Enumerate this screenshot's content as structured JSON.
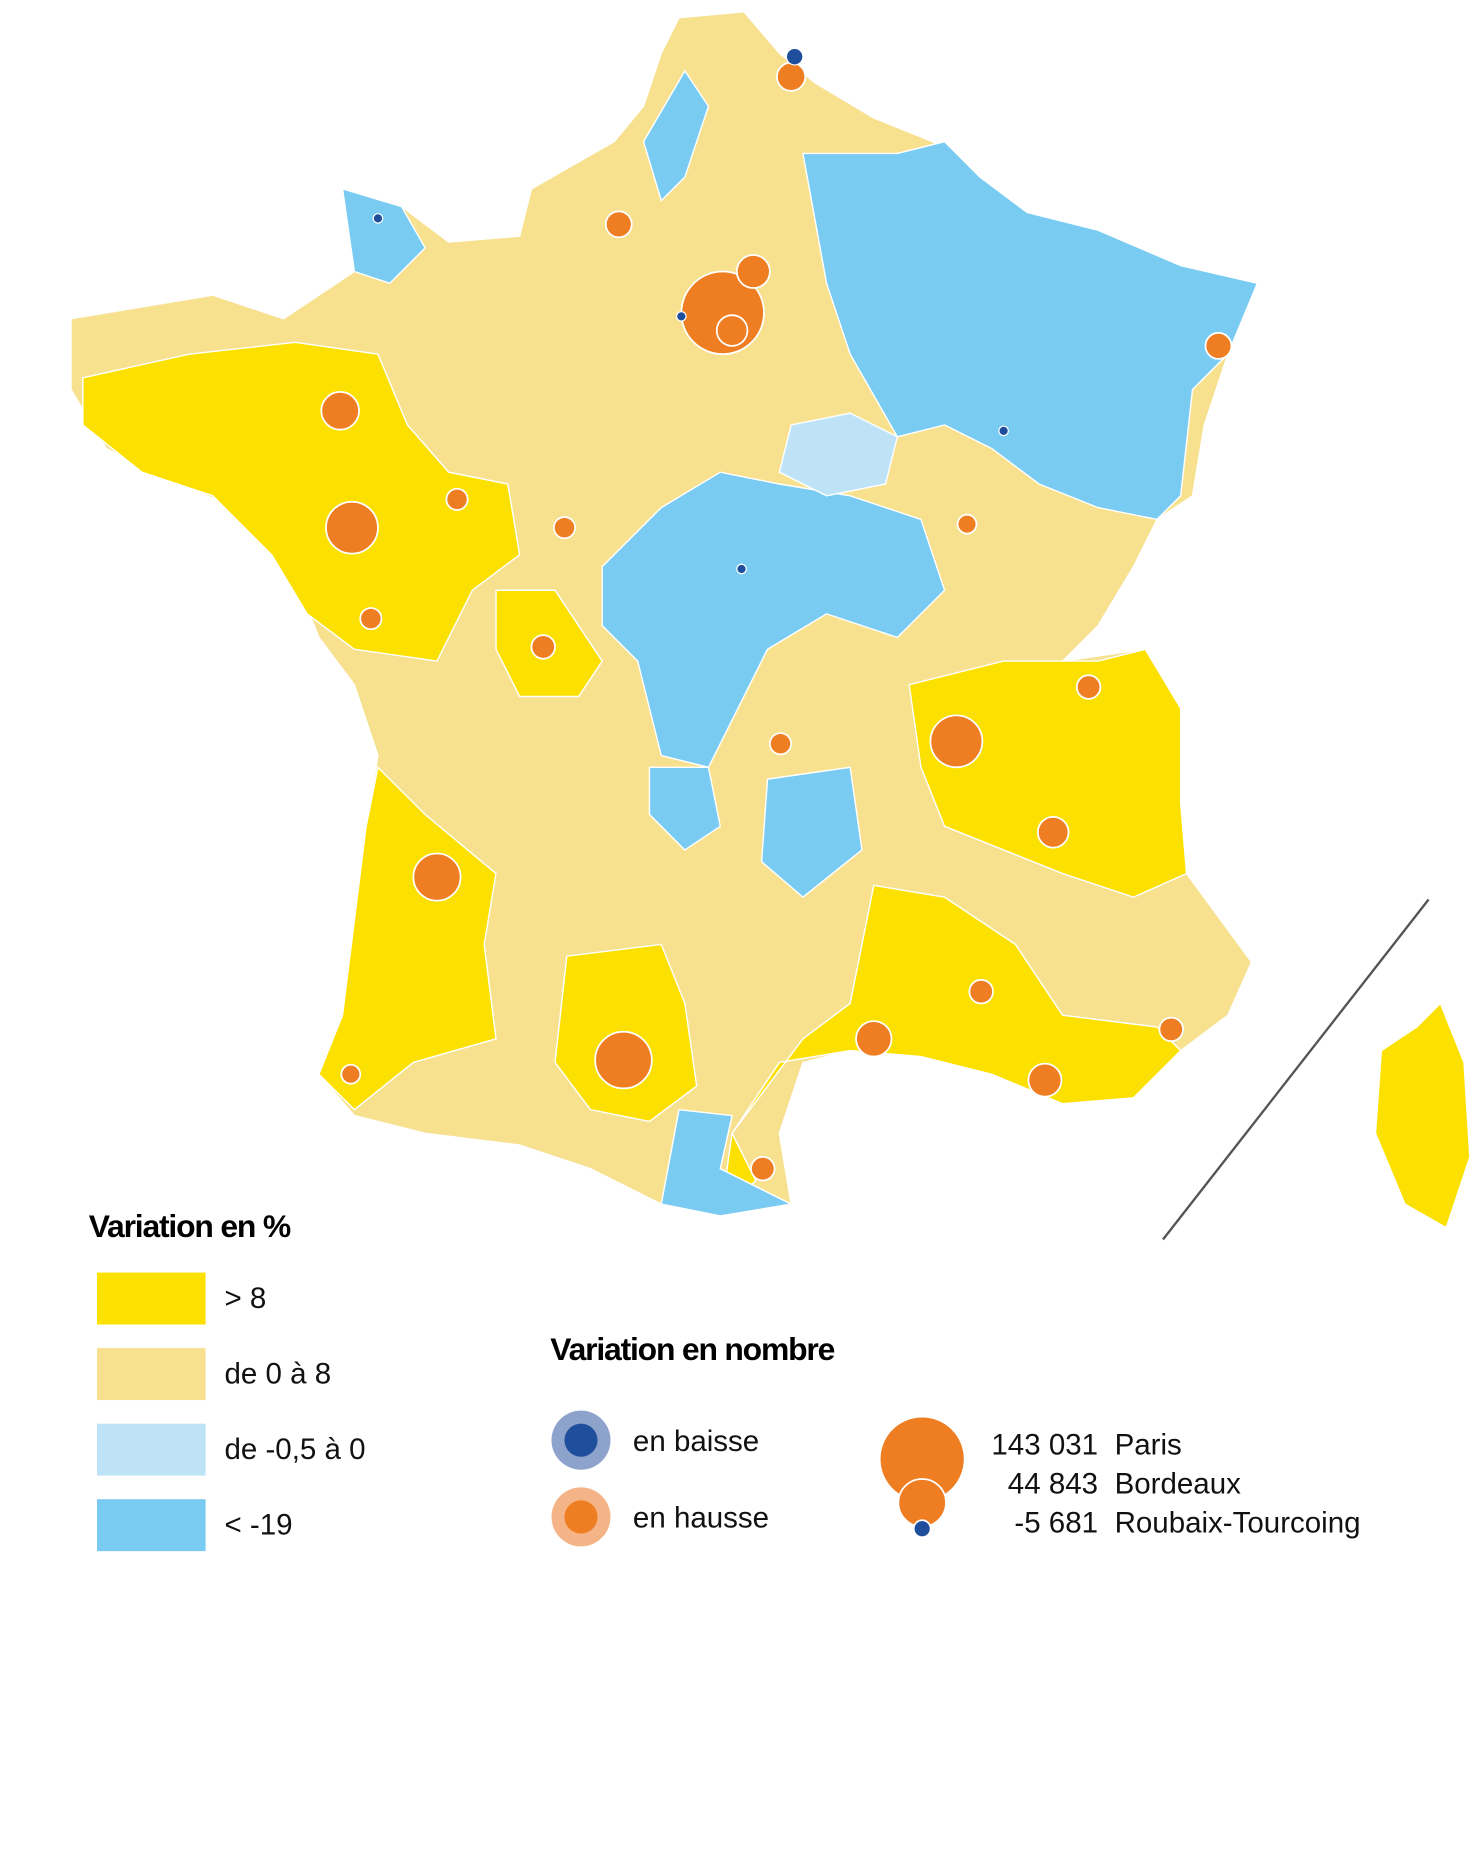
{
  "legend_percent": {
    "title": "Variation en %",
    "classes": [
      {
        "label": "> 8",
        "color": "#fce000"
      },
      {
        "label": "de 0 à 8",
        "color": "#f7e08e"
      },
      {
        "label": "de -0,5 à 0",
        "color": "#bfe3f6"
      },
      {
        "label": "< -19",
        "color": "#79cbf1"
      }
    ]
  },
  "legend_count": {
    "title": "Variation en nombre",
    "symbols": [
      {
        "label": "en baisse",
        "color": "#1f4e9c",
        "halo": "#8ea3cc"
      },
      {
        "label": "en hausse",
        "color": "#ef7d22",
        "halo": "#f4b487"
      }
    ],
    "examples": [
      {
        "value": 143031,
        "label": "143 031",
        "city": "Paris"
      },
      {
        "value": 44843,
        "label": "44 843",
        "city": "Bordeaux"
      },
      {
        "value": -5681,
        "label": "-5 681",
        "city": "Roubaix-Tourcoing"
      }
    ]
  }
}
